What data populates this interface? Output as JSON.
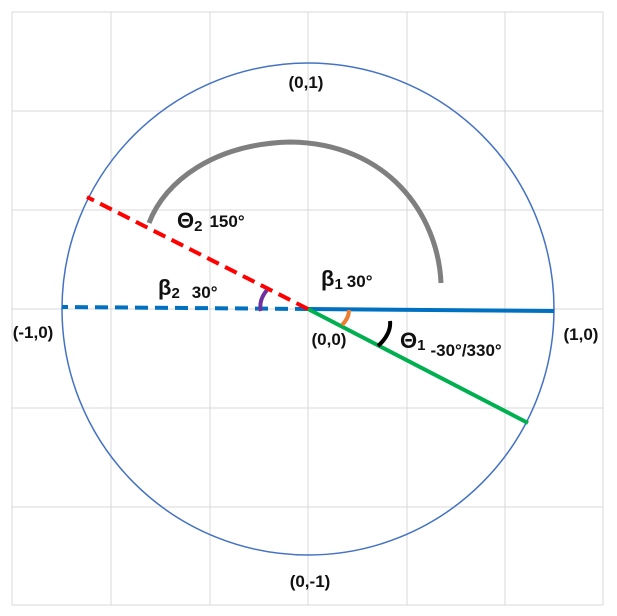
{
  "labels": {
    "top": "(0,1)",
    "bottom": "(0,-1)",
    "left": "(-1,0)",
    "right": "(1,0)",
    "origin": "(0,0)",
    "theta1_symbol": "Θ",
    "theta1_sub": "1",
    "theta1_value": "-30°/330°",
    "theta2_symbol": "Θ",
    "theta2_sub": "2",
    "theta2_value": "150°",
    "beta1_symbol": "β",
    "beta1_sub": "1",
    "beta1_value": "30°",
    "beta2_symbol": "β",
    "beta2_sub": "2",
    "beta2_value": "30°"
  },
  "angles_deg": {
    "theta1": -30,
    "theta2": 150,
    "beta1": 30,
    "beta2": 30
  },
  "colors": {
    "circle": "#4472c4",
    "positive_x_ray": "#0070c0",
    "negative_x_ray": "#0070c0",
    "theta1_ray": "#00b050",
    "theta2_ray": "#ff0000",
    "theta2_arc": "#7f7f7f",
    "theta1_arc": "#000000",
    "beta1_arc": "#ed7d31",
    "beta2_arc": "#7030a0"
  }
}
